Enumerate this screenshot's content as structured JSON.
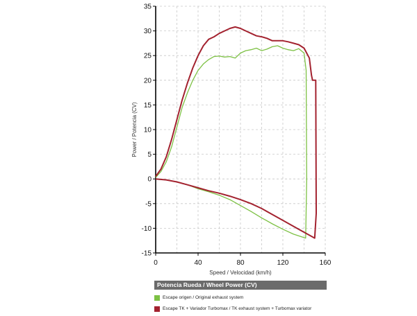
{
  "chart_data": {
    "type": "line",
    "title": "",
    "xlabel": "Speed / Velocidad (km/h)",
    "ylabel": "Power / Potencia (CV)",
    "xlim": [
      0,
      160
    ],
    "ylim": [
      -15,
      35
    ],
    "x_ticks": [
      0,
      40,
      80,
      120,
      160
    ],
    "y_ticks": [
      -15,
      -10,
      -5,
      0,
      5,
      10,
      15,
      20,
      25,
      30,
      35
    ],
    "grid": true,
    "legend_title": "Potencia Rueda / Wheel Power (CV)",
    "legend_position": "bottom",
    "series": [
      {
        "name": "Escape origen / Original exhaust system",
        "color": "#7dc144",
        "x": [
          0,
          5,
          10,
          15,
          20,
          25,
          30,
          35,
          40,
          45,
          50,
          55,
          60,
          65,
          70,
          75,
          80,
          85,
          90,
          95,
          100,
          105,
          110,
          115,
          120,
          125,
          130,
          135,
          140,
          142,
          142.5,
          141.5,
          130,
          120,
          110,
          100,
          90,
          80,
          70,
          60,
          50,
          40,
          30,
          20,
          10,
          0
        ],
        "y": [
          0.3,
          1.5,
          3.5,
          6.5,
          10.5,
          14.5,
          17.5,
          20,
          22,
          23.3,
          24.2,
          24.8,
          24.9,
          24.7,
          24.8,
          24.5,
          25.5,
          26,
          26.2,
          26.5,
          26,
          26.3,
          26.8,
          27,
          26.5,
          26.2,
          26,
          26.4,
          25.5,
          22,
          0,
          -12,
          -11.2,
          -10.2,
          -9.1,
          -7.9,
          -6.6,
          -5.4,
          -4.2,
          -3.3,
          -2.6,
          -2,
          -1.2,
          -0.6,
          -0.2,
          0
        ]
      },
      {
        "name": "Escape TK + Variador Turbomax  / TK exhaust  system + Turbomax variator",
        "color": "#a3222f",
        "x": [
          0,
          5,
          10,
          15,
          20,
          25,
          30,
          35,
          40,
          45,
          50,
          55,
          60,
          65,
          70,
          75,
          80,
          85,
          90,
          95,
          100,
          105,
          110,
          115,
          120,
          125,
          130,
          135,
          140,
          145,
          147,
          148,
          151,
          151.5,
          150,
          140,
          130,
          120,
          110,
          100,
          90,
          80,
          70,
          60,
          50,
          40,
          30,
          20,
          10,
          0
        ],
        "y": [
          0.5,
          2,
          4.5,
          8,
          12,
          16,
          19.5,
          22.5,
          25,
          27,
          28.3,
          28.8,
          29.5,
          30,
          30.5,
          30.8,
          30.5,
          30,
          29.5,
          29,
          28.8,
          28.5,
          28,
          28,
          28,
          27.8,
          27.5,
          27.2,
          26.5,
          24.5,
          21,
          20,
          20,
          -7,
          -12,
          -10.8,
          -9.6,
          -8.4,
          -7.2,
          -6,
          -5,
          -4.2,
          -3.5,
          -2.9,
          -2.4,
          -1.8,
          -1.2,
          -0.6,
          -0.2,
          0
        ]
      }
    ]
  }
}
